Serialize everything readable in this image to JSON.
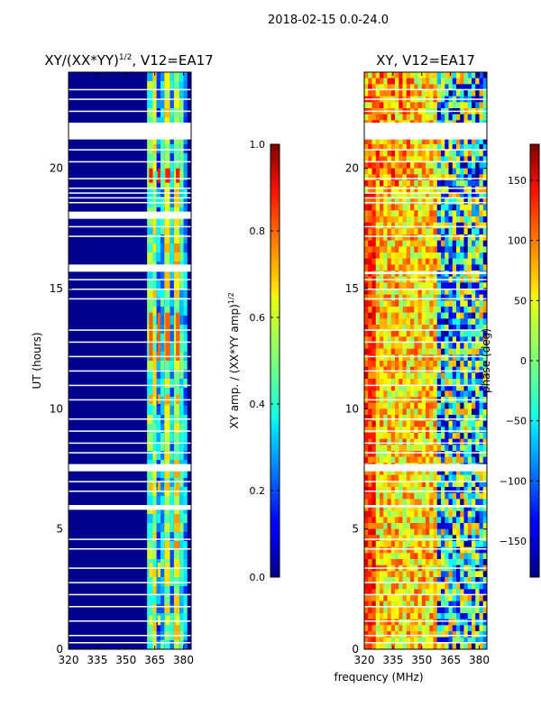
{
  "figure": {
    "suptitle": "2018-02-15 0.0-24.0"
  },
  "chart_data": [
    {
      "type": "heatmap",
      "title_main": "XY/(XX*YY)",
      "title_sup": "1/2",
      "title_tail": ", V12=EA17",
      "xlabel": "",
      "ylabel": "UT (hours)",
      "xlim": [
        320,
        384
      ],
      "ylim": [
        0,
        24
      ],
      "x_ticks": [
        320,
        335,
        350,
        365,
        380
      ],
      "y_ticks": [
        0,
        5,
        10,
        15,
        20
      ],
      "colormap": "jet",
      "colorbar": {
        "label_main": "XY amp. / (XX*YY amp)",
        "label_sup": "1/2",
        "range": [
          0.0,
          1.0
        ],
        "ticks": [
          {
            "value": 0.0,
            "label": "0.0"
          },
          {
            "value": 0.2,
            "label": "0.2"
          },
          {
            "value": 0.4,
            "label": "0.4"
          },
          {
            "value": 0.6,
            "label": "0.6"
          },
          {
            "value": 0.8,
            "label": "0.8"
          },
          {
            "value": 1.0,
            "label": "1.0"
          }
        ]
      },
      "flagged_hours": [
        [
          21.2,
          21.9
        ],
        [
          17.9,
          18.2
        ],
        [
          15.7,
          16.0
        ],
        [
          7.4,
          7.7
        ],
        [
          5.8,
          6.0
        ]
      ]
    },
    {
      "type": "heatmap",
      "title": "XY, V12=EA17",
      "xlabel": "frequency (MHz)",
      "ylabel": "",
      "xlim": [
        320,
        384
      ],
      "ylim": [
        0,
        24
      ],
      "x_ticks": [
        320,
        335,
        350,
        365,
        380
      ],
      "y_ticks": [
        0,
        5,
        10,
        15,
        20
      ],
      "colormap": "jet",
      "colorbar": {
        "label": "phase (deg)",
        "range": [
          -180,
          180
        ],
        "ticks": [
          {
            "value": -150,
            "label": "−150"
          },
          {
            "value": -100,
            "label": "−100"
          },
          {
            "value": -50,
            "label": "−50"
          },
          {
            "value": 0,
            "label": "0"
          },
          {
            "value": 50,
            "label": "50"
          },
          {
            "value": 100,
            "label": "100"
          },
          {
            "value": 150,
            "label": "150"
          }
        ]
      },
      "flagged_hours": [
        [
          21.2,
          21.9
        ],
        [
          15.6,
          15.7
        ],
        [
          7.4,
          7.7
        ],
        [
          5.9,
          6.0
        ]
      ]
    }
  ]
}
